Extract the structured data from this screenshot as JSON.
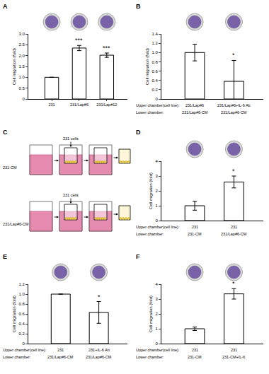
{
  "chart_data": [
    {
      "type": "bar",
      "title": "A",
      "ylabel": "Cell migration (fold)",
      "color": "#ffffff",
      "categories": [
        "231",
        "231/Lap#6",
        "231/Lap#12"
      ],
      "values": [
        1,
        2.35,
        2.02
      ],
      "errors": [
        0,
        0.12,
        0.1
      ],
      "ylim": [
        0,
        3
      ],
      "yticks": [
        0,
        0.5,
        {
          "value": 1,
          "label": "1.0"
        },
        1.5,
        {
          "value": 2,
          "label": "2.0"
        },
        2.5,
        {
          "value": 3,
          "label": "3.0"
        }
      ],
      "annotations": [
        {
          "x": 1,
          "text": "***"
        },
        {
          "x": 2,
          "text": "***"
        }
      ]
    },
    {
      "type": "bar",
      "title": "B",
      "ylabel": "Cell migration (fold)",
      "color": "#ffffff",
      "row_labels": [
        "Upper chamber(cell line):",
        "Lower chamber:"
      ],
      "categories": [
        "231/Lap#6",
        "231/Lap#6+IL-6 Ab"
      ],
      "categories2": [
        "231/Lap#6-CM",
        "231/Lap#6-CM"
      ],
      "values": [
        1,
        0.38
      ],
      "errors": [
        0.18,
        0.45
      ],
      "ylim": [
        0,
        1.4
      ],
      "yticks": [
        0,
        0.2,
        0.4,
        0.6,
        0.8,
        {
          "value": 1,
          "label": "1.0"
        },
        1.2,
        1.4
      ],
      "annotations": [
        {
          "x": 1,
          "text": "*"
        }
      ]
    },
    {
      "type": "bar",
      "title": "D",
      "ylabel": "Cell migration (fold)",
      "color": "#ffffff",
      "row_labels": [
        "Upper chamber(cell line):",
        "Lower chamber:"
      ],
      "categories": [
        "231",
        "231"
      ],
      "categories2": [
        "231-CM",
        "231/Lap#6-CM"
      ],
      "values": [
        1,
        2.6
      ],
      "errors": [
        0.3,
        0.4
      ],
      "ylim": [
        0,
        4
      ],
      "yticks": [
        0,
        1,
        2,
        3,
        4
      ],
      "annotations": [
        {
          "x": 1,
          "text": "*"
        }
      ]
    },
    {
      "type": "bar",
      "title": "E",
      "ylabel": "Cell migration (fold)",
      "color": "#ffffff",
      "row_labels": [
        "Upper chamber(cell line):",
        "Lower chamber:"
      ],
      "categories": [
        "231",
        "231+IL-6 Ab"
      ],
      "categories2": [
        "231/Lap#6-CM",
        "231/Lap#6-CM"
      ],
      "values": [
        1,
        0.63
      ],
      "errors": [
        0,
        0.22
      ],
      "ylim": [
        0,
        1.2
      ],
      "yticks": [
        0,
        0.2,
        0.4,
        0.6,
        0.8,
        {
          "value": 1,
          "label": "1.0"
        },
        1.2
      ],
      "annotations": [
        {
          "x": 1,
          "text": "*"
        }
      ]
    },
    {
      "type": "bar",
      "title": "F",
      "ylabel": "Cell migration (fold)",
      "color": "#ffffff",
      "row_labels": [
        "Upper chamber(cell line):",
        "Lower chamber:"
      ],
      "categories": [
        "231",
        "231"
      ],
      "categories2": [
        "231-CM",
        "231-CM+IL-6"
      ],
      "values": [
        1,
        3.35
      ],
      "errors": [
        0.12,
        0.35
      ],
      "ylim": [
        0,
        4
      ],
      "yticks": [
        0,
        1,
        2,
        3,
        4
      ],
      "annotations": [
        {
          "x": 1,
          "text": "*"
        }
      ]
    }
  ],
  "diagram": {
    "title": "C",
    "cells_label": "231 cells",
    "media": [
      "231-CM",
      "231/Lap#6-CM"
    ]
  }
}
